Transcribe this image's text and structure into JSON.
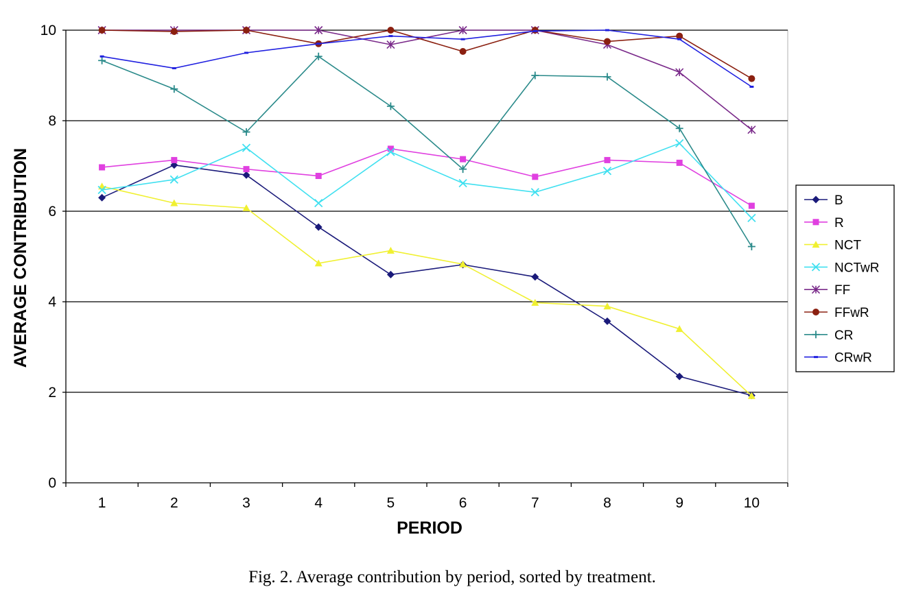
{
  "caption": "Fig. 2.  Average contribution by period, sorted by treatment.",
  "chart_data": {
    "type": "line",
    "title": "",
    "xlabel": "PERIOD",
    "ylabel": "AVERAGE CONTRIBUTION",
    "x": [
      1,
      2,
      3,
      4,
      5,
      6,
      7,
      8,
      9,
      10
    ],
    "ylim": [
      0,
      10
    ],
    "yticks": [
      0,
      2,
      4,
      6,
      8,
      10
    ],
    "ytick_labels": [
      "0",
      "2",
      "4",
      "6",
      "8",
      "10"
    ],
    "grid": "horizontal",
    "legend_position": "right",
    "series": [
      {
        "name": "B",
        "color": "#1a1a7a",
        "marker": "diamond",
        "values": [
          6.3,
          7.02,
          6.8,
          5.65,
          4.6,
          4.82,
          4.55,
          3.57,
          2.35,
          1.93
        ]
      },
      {
        "name": "R",
        "color": "#e040e0",
        "marker": "square",
        "values": [
          6.97,
          7.13,
          6.93,
          6.78,
          7.38,
          7.15,
          6.76,
          7.13,
          7.07,
          6.12
        ]
      },
      {
        "name": "NCT",
        "color": "#f0f030",
        "marker": "triangle",
        "values": [
          6.55,
          6.18,
          6.07,
          4.85,
          5.13,
          4.83,
          3.98,
          3.9,
          3.4,
          1.92
        ]
      },
      {
        "name": "NCTwR",
        "color": "#40e0f0",
        "marker": "x",
        "values": [
          6.47,
          6.7,
          7.4,
          6.18,
          7.31,
          6.62,
          6.42,
          6.89,
          7.5,
          5.85
        ]
      },
      {
        "name": "FF",
        "color": "#7a2a8a",
        "marker": "star",
        "values": [
          10.0,
          10.0,
          10.0,
          10.0,
          9.68,
          10.0,
          10.0,
          9.68,
          9.07,
          7.8
        ]
      },
      {
        "name": "FFwR",
        "color": "#8b2010",
        "marker": "circle",
        "values": [
          10.0,
          9.97,
          10.0,
          9.7,
          10.0,
          9.53,
          10.0,
          9.75,
          9.87,
          8.93
        ]
      },
      {
        "name": "CR",
        "color": "#2a8a8a",
        "marker": "plus",
        "values": [
          9.33,
          8.7,
          7.75,
          9.42,
          8.32,
          6.93,
          9.0,
          8.97,
          7.83,
          5.22
        ]
      },
      {
        "name": "CRwR",
        "color": "#2020e0",
        "marker": "dash",
        "values": [
          9.42,
          9.16,
          9.5,
          9.7,
          9.87,
          9.8,
          9.98,
          10.0,
          9.8,
          8.75
        ]
      }
    ]
  }
}
